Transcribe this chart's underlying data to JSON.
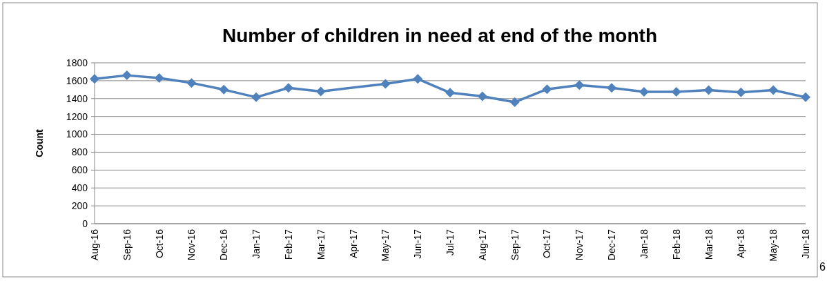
{
  "chart_data": {
    "type": "line",
    "title": "Number of children in need at end of the month",
    "ylabel": "Count",
    "categories": [
      "Aug-16",
      "Sep-16",
      "Oct-16",
      "Nov-16",
      "Dec-16",
      "Jan-17",
      "Feb-17",
      "Mar-17",
      "Apr-17",
      "May-17",
      "Jun-17",
      "Jul-17",
      "Aug-17",
      "Sep-17",
      "Oct-17",
      "Nov-17",
      "Dec-17",
      "Jan-18",
      "Feb-18",
      "Mar-18",
      "Apr-18",
      "May-18",
      "Jun-18"
    ],
    "series": [
      {
        "color": "#4f81bd",
        "values": [
          1620,
          1660,
          1630,
          1575,
          1500,
          1415,
          1520,
          1480,
          null,
          1565,
          1620,
          1465,
          1425,
          1360,
          1505,
          1550,
          1520,
          1475,
          1475,
          1495,
          1470,
          1495,
          1415
        ]
      }
    ],
    "ylim": [
      0,
      1800
    ],
    "yticks": [
      0,
      200,
      400,
      600,
      800,
      1000,
      1200,
      1400,
      1600,
      1800
    ],
    "grid": "y",
    "marker": "diamond",
    "line_style": "solid",
    "annotations": [
      "6"
    ]
  }
}
